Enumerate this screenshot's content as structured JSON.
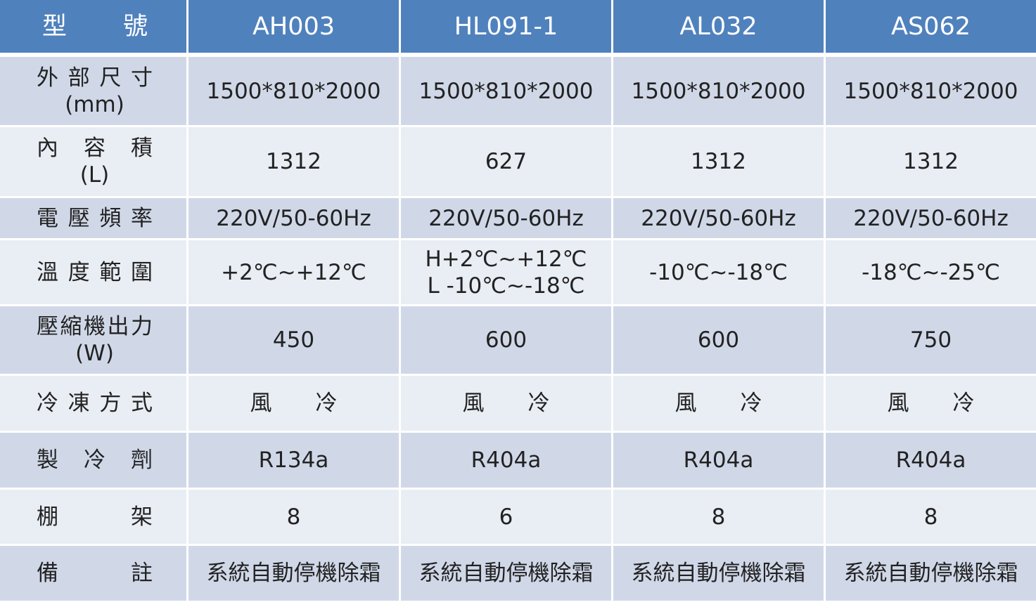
{
  "header": {
    "label": "型 號",
    "models": [
      "AH003",
      "HL091-1",
      "AL032",
      "AS062"
    ]
  },
  "colors": {
    "header": "#4f81bd",
    "row_dark": "#d0d8e8",
    "row_light": "#e9edf4"
  },
  "rows": [
    {
      "label": "外 部 尺 寸",
      "unit": "(mm)",
      "values": [
        "1500*810*2000",
        "1500*810*2000",
        "1500*810*2000",
        "1500*810*2000"
      ]
    },
    {
      "label": "內 容 積",
      "unit": "(L)",
      "values": [
        "1312",
        "627",
        "1312",
        "1312"
      ]
    },
    {
      "label": "電 壓 頻 率",
      "values": [
        "220V/50-60Hz",
        "220V/50-60Hz",
        "220V/50-60Hz",
        "220V/50-60Hz"
      ]
    },
    {
      "label": "溫 度 範 圍",
      "values": [
        "+2℃~+12℃",
        "H+2℃~+12℃\nL -10℃~-18℃",
        "-10℃~-18℃",
        "-18℃~-25℃"
      ]
    },
    {
      "label": "壓縮機出力",
      "unit": "(W)",
      "values": [
        "450",
        "600",
        "600",
        "750"
      ]
    },
    {
      "label": "冷 凍 方 式",
      "values": [
        "風　　冷",
        "風　　冷",
        "風　　冷",
        "風　　冷"
      ]
    },
    {
      "label": "製 冷 劑",
      "values": [
        "R134a",
        "R404a",
        "R404a",
        "R404a"
      ]
    },
    {
      "label": "棚 架",
      "values": [
        "8",
        "6",
        "8",
        "8"
      ]
    },
    {
      "label": "備 註",
      "values": [
        "系統自動停機除霜",
        "系統自動停機除霜",
        "系統自動停機除霜",
        "系統自動停機除霜"
      ]
    }
  ]
}
